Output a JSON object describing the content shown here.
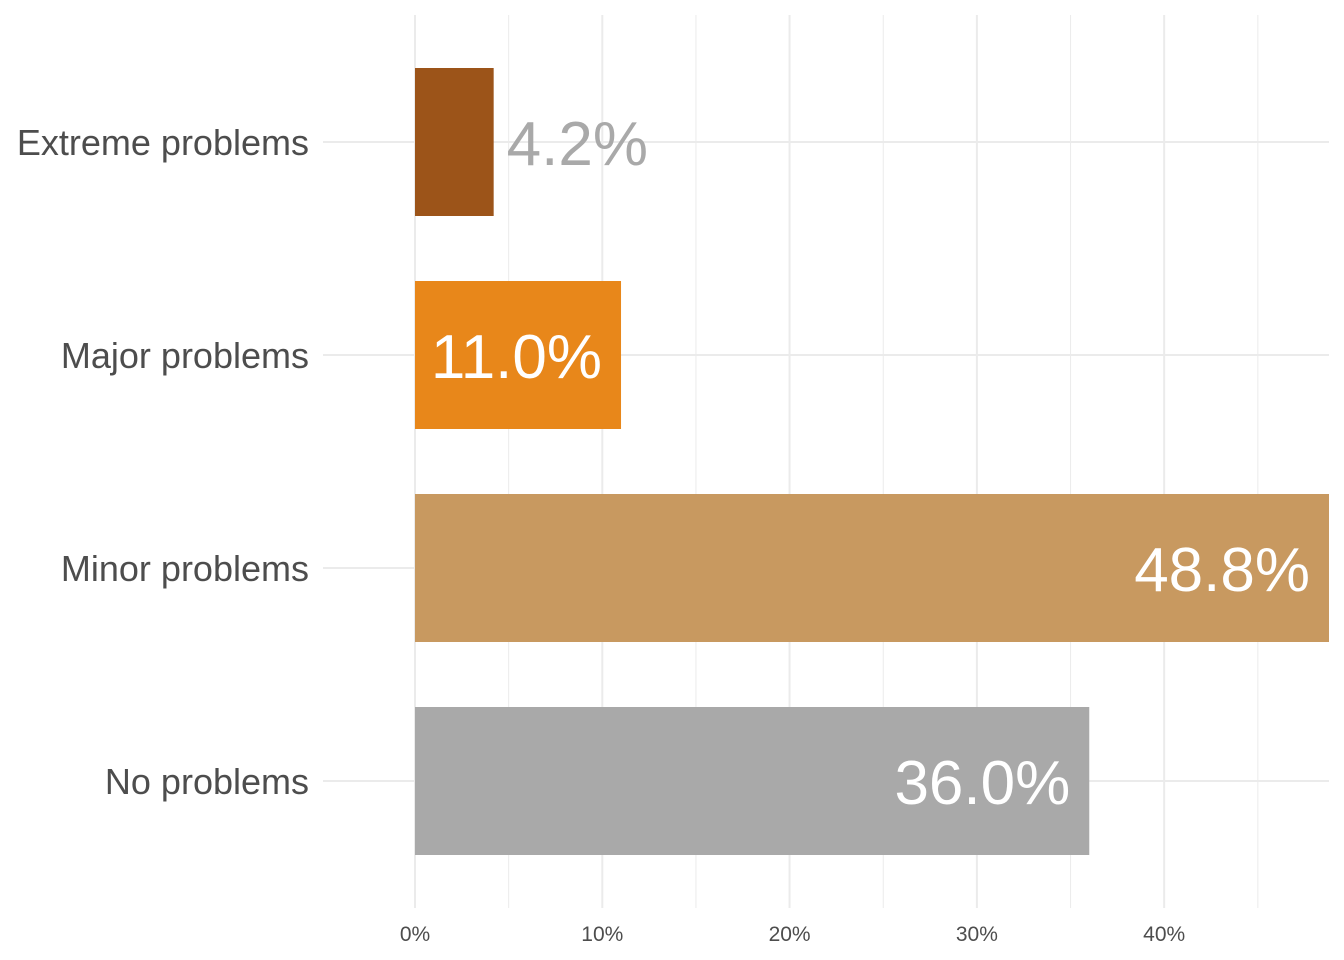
{
  "chart_data": {
    "type": "bar",
    "orientation": "horizontal",
    "categories": [
      "Extreme problems",
      "Major problems",
      "Minor problems",
      "No problems"
    ],
    "values": [
      4.2,
      11.0,
      48.8,
      36.0
    ],
    "value_labels": [
      "4.2%",
      "11.0%",
      "48.8%",
      "36.0%"
    ],
    "colors": [
      "#9c5419",
      "#e8871a",
      "#c89960",
      "#a9a9a9"
    ],
    "label_colors": [
      "#a9a9a9",
      "#ffffff",
      "#ffffff",
      "#ffffff"
    ],
    "label_position": [
      "outside",
      "inside",
      "inside",
      "inside"
    ],
    "x_ticks": [
      0,
      10,
      20,
      30,
      40
    ],
    "x_tick_labels": [
      "0%",
      "10%",
      "20%",
      "30%",
      "40%"
    ],
    "xlim": [
      0,
      48.8
    ],
    "grid": true,
    "title": "",
    "xlabel": "",
    "ylabel": ""
  }
}
